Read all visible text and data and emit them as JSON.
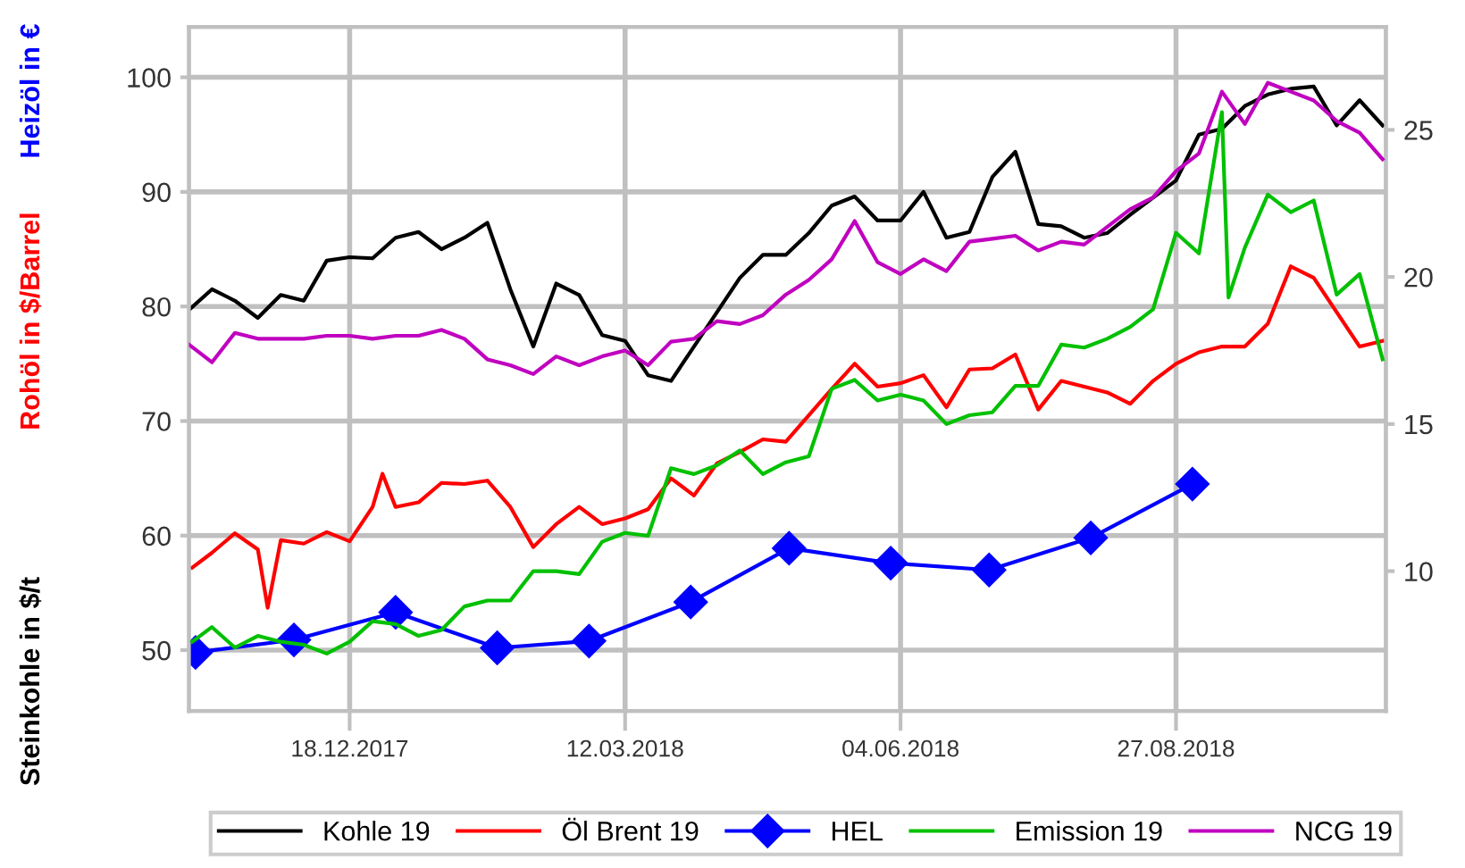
{
  "chart_data": {
    "type": "line",
    "ylabel": "Steinkohle in $/t",
    "annotations": [
      "Rohöl in $/Barrel",
      "Heizöl in €"
    ],
    "x": [
      "2017-10-30",
      "2017-11-06",
      "2017-11-13",
      "2017-11-20",
      "2017-11-27",
      "2017-12-04",
      "2017-12-11",
      "2017-12-18",
      "2017-12-25",
      "2018-01-01",
      "2018-01-08",
      "2018-01-15",
      "2018-01-22",
      "2018-01-29",
      "2018-02-05",
      "2018-02-12",
      "2018-02-19",
      "2018-02-26",
      "2018-03-05",
      "2018-03-12",
      "2018-03-19",
      "2018-03-26",
      "2018-04-02",
      "2018-04-09",
      "2018-04-16",
      "2018-04-23",
      "2018-04-30",
      "2018-05-07",
      "2018-05-14",
      "2018-05-21",
      "2018-05-28",
      "2018-06-04",
      "2018-06-11",
      "2018-06-18",
      "2018-06-25",
      "2018-07-02",
      "2018-07-09",
      "2018-07-16",
      "2018-07-23",
      "2018-07-30",
      "2018-08-06",
      "2018-08-13",
      "2018-08-20",
      "2018-08-27",
      "2018-09-03",
      "2018-09-10",
      "2018-09-17",
      "2018-09-24",
      "2018-10-01",
      "2018-10-08",
      "2018-10-15",
      "2018-10-22",
      "2018-10-29"
    ],
    "series": [
      {
        "name": "Kohle 19",
        "color": "#000000",
        "values": [
          79.7,
          81.5,
          80.5,
          79,
          81,
          80.5,
          84,
          84.3,
          84.2,
          86,
          86.5,
          85,
          86,
          87.3,
          81.5,
          76.5,
          82,
          81,
          77.5,
          77,
          74,
          73.5,
          76.5,
          79.5,
          82.5,
          84.5,
          84.5,
          86.4,
          88.8,
          89.6,
          87.5,
          87.5,
          90,
          86,
          86.5,
          91.3,
          93.5,
          87.2,
          87,
          86,
          86.4,
          88,
          89.5,
          91,
          95,
          95.5,
          97.5,
          98.5,
          99,
          99.2,
          95.8,
          98,
          95.8
        ]
      },
      {
        "name": "Öl Brent 19",
        "color": "#ff0000",
        "x": [
          "2017-10-31",
          "2017-11-06",
          "2017-11-13",
          "2017-11-20",
          "2017-11-23",
          "2017-11-27",
          "2017-12-04",
          "2017-12-11",
          "2017-12-18",
          "2017-12-25",
          "2017-12-28",
          "2018-01-01",
          "2018-01-08",
          "2018-01-15",
          "2018-01-22",
          "2018-01-29",
          "2018-02-05",
          "2018-02-12",
          "2018-02-19",
          "2018-02-26",
          "2018-03-05",
          "2018-03-12",
          "2018-03-19",
          "2018-03-26",
          "2018-04-02",
          "2018-04-09",
          "2018-04-16",
          "2018-04-23",
          "2018-04-30",
          "2018-05-07",
          "2018-05-14",
          "2018-05-21",
          "2018-05-28",
          "2018-06-04",
          "2018-06-11",
          "2018-06-18",
          "2018-06-25",
          "2018-07-02",
          "2018-07-09",
          "2018-07-16",
          "2018-07-23",
          "2018-07-30",
          "2018-08-06",
          "2018-08-13",
          "2018-08-20",
          "2018-08-27",
          "2018-09-03",
          "2018-09-10",
          "2018-09-17",
          "2018-09-24",
          "2018-10-01",
          "2018-10-08",
          "2018-10-15",
          "2018-10-22",
          "2018-10-29"
        ],
        "values": [
          57.2,
          58.5,
          60.2,
          58.8,
          53.7,
          59.6,
          59.3,
          60.3,
          59.5,
          62.5,
          65.4,
          62.5,
          62.9,
          64.6,
          64.5,
          64.8,
          62.5,
          59,
          61,
          62.5,
          61,
          61.5,
          62.3,
          65,
          63.5,
          66.3,
          67.3,
          68.4,
          68.2,
          70.5,
          72.8,
          75,
          73,
          73.3,
          74,
          71.2,
          74.5,
          74.6,
          75.8,
          71,
          73.5,
          73,
          72.5,
          71.5,
          73.5,
          75,
          76,
          76.5,
          76.5,
          78.5,
          83.5,
          82.5,
          79.5,
          76.5,
          77
        ]
      },
      {
        "name": "HEL",
        "color": "#0000ff",
        "marker": "diamond",
        "x": [
          "2017-11-01",
          "2017-12-01",
          "2018-01-01",
          "2018-02-01",
          "2018-03-01",
          "2018-04-01",
          "2018-05-01",
          "2018-06-01",
          "2018-07-01",
          "2018-08-01",
          "2018-09-01"
        ],
        "values": [
          49.8,
          50.9,
          53.3,
          50.2,
          50.8,
          54.2,
          58.9,
          57.6,
          57,
          59.8,
          64.5
        ]
      },
      {
        "name": "Emission 19",
        "color": "#00c000",
        "axis": "y2",
        "x": [
          "2017-10-31",
          "2017-11-06",
          "2017-11-13",
          "2017-11-20",
          "2017-11-27",
          "2017-12-04",
          "2017-12-11",
          "2017-12-18",
          "2017-12-25",
          "2018-01-01",
          "2018-01-08",
          "2018-01-15",
          "2018-01-22",
          "2018-01-29",
          "2018-02-05",
          "2018-02-12",
          "2018-02-19",
          "2018-02-26",
          "2018-03-05",
          "2018-03-12",
          "2018-03-19",
          "2018-03-26",
          "2018-04-02",
          "2018-04-09",
          "2018-04-16",
          "2018-04-23",
          "2018-04-30",
          "2018-05-07",
          "2018-05-14",
          "2018-05-21",
          "2018-05-28",
          "2018-06-04",
          "2018-06-11",
          "2018-06-18",
          "2018-06-25",
          "2018-07-02",
          "2018-07-09",
          "2018-07-16",
          "2018-07-23",
          "2018-07-30",
          "2018-08-06",
          "2018-08-13",
          "2018-08-20",
          "2018-08-27",
          "2018-09-03",
          "2018-09-10",
          "2018-09-12",
          "2018-09-17",
          "2018-09-24",
          "2018-10-01",
          "2018-10-08",
          "2018-10-15",
          "2018-10-22",
          "2018-10-29"
        ],
        "values": [
          7.6,
          8.1,
          7.4,
          7.8,
          7.6,
          7.5,
          7.2,
          7.6,
          8.3,
          8.2,
          7.8,
          8,
          8.8,
          9,
          9,
          10,
          10,
          9.9,
          11,
          11.3,
          11.2,
          13.5,
          13.3,
          13.6,
          14.1,
          13.3,
          13.7,
          13.9,
          16.2,
          16.5,
          15.8,
          16,
          15.8,
          15,
          15.3,
          15.4,
          16.3,
          16.3,
          17.7,
          17.6,
          17.9,
          18.3,
          18.9,
          21.5,
          20.8,
          25.6,
          19.3,
          21,
          22.8,
          22.2,
          22.6,
          19.4,
          20.1,
          17.2
        ]
      },
      {
        "name": "NCG 19",
        "color": "#c000c0",
        "axis": "y2",
        "values": [
          17.7,
          17.1,
          18.1,
          17.9,
          17.9,
          17.9,
          18,
          18,
          17.9,
          18,
          18,
          18.2,
          17.9,
          17.2,
          17,
          16.7,
          17.3,
          17,
          17.3,
          17.5,
          17,
          17.8,
          17.9,
          18.5,
          18.4,
          18.7,
          19.4,
          19.9,
          20.6,
          21.9,
          20.5,
          20.1,
          20.6,
          20.2,
          21.2,
          21.3,
          21.4,
          20.9,
          21.2,
          21.1,
          21.7,
          22.3,
          22.7,
          23.6,
          24.2,
          26.3,
          25.2,
          26.6,
          26.3,
          26,
          25.3,
          24.9,
          24
        ]
      }
    ],
    "xlim": [
      "2017-10-30",
      "2018-10-30"
    ],
    "xticks": [
      {
        "value": "2017-12-18",
        "label": "18.12.2017"
      },
      {
        "value": "2018-03-12",
        "label": "12.03.2018"
      },
      {
        "value": "2018-06-04",
        "label": "04.06.2018"
      },
      {
        "value": "2018-08-27",
        "label": "27.08.2018"
      }
    ],
    "ylim": [
      44.7,
      104.4
    ],
    "yticks": [
      50,
      60,
      70,
      80,
      90,
      100
    ],
    "y2lim": [
      5.25,
      28.5
    ],
    "y2ticks": [
      10,
      15,
      20,
      25
    ],
    "grid": true,
    "legend": "bottom",
    "marker": "none",
    "line_style": "solid"
  }
}
